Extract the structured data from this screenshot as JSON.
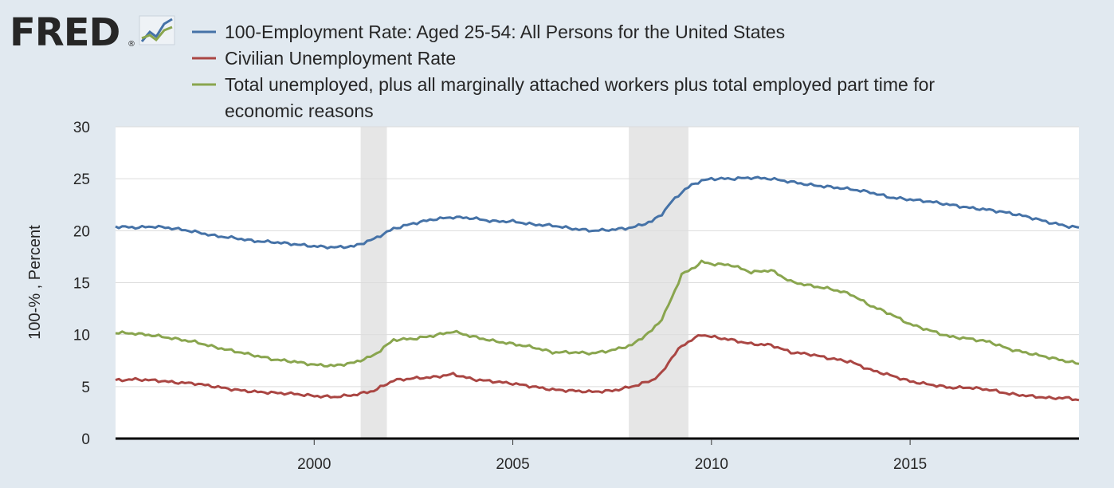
{
  "logo": {
    "text": "FRED",
    "registered": "®"
  },
  "chart_data": {
    "type": "line",
    "title": "",
    "xlabel": "",
    "ylabel": "100-% , Percent",
    "xlim": [
      1995.0,
      2019.25
    ],
    "ylim": [
      0,
      30
    ],
    "yticks": [
      0,
      5,
      10,
      15,
      20,
      25,
      30
    ],
    "ytick_labels": [
      "0",
      "5",
      "10",
      "15",
      "20",
      "25",
      "30"
    ],
    "xticks": [
      2000,
      2005,
      2010,
      2015
    ],
    "xtick_labels": [
      "2000",
      "2005",
      "2010",
      "2015"
    ],
    "grid": "horizontal",
    "legend_position": "top",
    "recessions": [
      [
        2001.17,
        2001.83
      ],
      [
        2007.92,
        2009.42
      ]
    ],
    "series": [
      {
        "name": "100-Employment Rate: Aged 25-54: All Persons for the United States",
        "color": "#4572a7",
        "points": [
          [
            1995.0,
            20.4
          ],
          [
            1995.5,
            20.3
          ],
          [
            1996.0,
            20.4
          ],
          [
            1996.5,
            20.2
          ],
          [
            1997.0,
            19.9
          ],
          [
            1997.5,
            19.5
          ],
          [
            1998.0,
            19.3
          ],
          [
            1998.5,
            19.0
          ],
          [
            1999.0,
            18.9
          ],
          [
            1999.5,
            18.7
          ],
          [
            2000.0,
            18.5
          ],
          [
            2000.5,
            18.4
          ],
          [
            2001.0,
            18.5
          ],
          [
            2001.5,
            19.2
          ],
          [
            2002.0,
            20.2
          ],
          [
            2002.5,
            20.7
          ],
          [
            2003.0,
            21.1
          ],
          [
            2003.5,
            21.3
          ],
          [
            2004.0,
            21.2
          ],
          [
            2004.5,
            20.9
          ],
          [
            2005.0,
            20.9
          ],
          [
            2005.5,
            20.6
          ],
          [
            2006.0,
            20.5
          ],
          [
            2006.5,
            20.2
          ],
          [
            2007.0,
            20.0
          ],
          [
            2007.5,
            20.1
          ],
          [
            2008.0,
            20.3
          ],
          [
            2008.5,
            20.9
          ],
          [
            2008.75,
            21.6
          ],
          [
            2009.0,
            22.8
          ],
          [
            2009.25,
            23.7
          ],
          [
            2009.5,
            24.4
          ],
          [
            2009.75,
            24.8
          ],
          [
            2010.0,
            25.0
          ],
          [
            2010.5,
            25.0
          ],
          [
            2011.0,
            25.1
          ],
          [
            2011.5,
            25.0
          ],
          [
            2012.0,
            24.7
          ],
          [
            2012.5,
            24.4
          ],
          [
            2013.0,
            24.2
          ],
          [
            2013.5,
            24.0
          ],
          [
            2014.0,
            23.7
          ],
          [
            2014.5,
            23.2
          ],
          [
            2015.0,
            23.0
          ],
          [
            2015.5,
            22.8
          ],
          [
            2016.0,
            22.5
          ],
          [
            2016.5,
            22.2
          ],
          [
            2017.0,
            22.0
          ],
          [
            2017.5,
            21.7
          ],
          [
            2018.0,
            21.3
          ],
          [
            2018.5,
            20.8
          ],
          [
            2019.0,
            20.4
          ],
          [
            2019.25,
            20.3
          ]
        ]
      },
      {
        "name": "Civilian Unemployment Rate",
        "color": "#aa4643",
        "points": [
          [
            1995.0,
            5.6
          ],
          [
            1995.5,
            5.7
          ],
          [
            1996.0,
            5.6
          ],
          [
            1996.5,
            5.4
          ],
          [
            1997.0,
            5.3
          ],
          [
            1997.5,
            5.0
          ],
          [
            1998.0,
            4.7
          ],
          [
            1998.5,
            4.5
          ],
          [
            1999.0,
            4.4
          ],
          [
            1999.5,
            4.3
          ],
          [
            2000.0,
            4.1
          ],
          [
            2000.5,
            4.0
          ],
          [
            2001.0,
            4.2
          ],
          [
            2001.5,
            4.6
          ],
          [
            2002.0,
            5.6
          ],
          [
            2002.5,
            5.8
          ],
          [
            2003.0,
            5.9
          ],
          [
            2003.5,
            6.2
          ],
          [
            2004.0,
            5.7
          ],
          [
            2004.5,
            5.5
          ],
          [
            2005.0,
            5.3
          ],
          [
            2005.5,
            5.0
          ],
          [
            2006.0,
            4.7
          ],
          [
            2006.5,
            4.6
          ],
          [
            2007.0,
            4.5
          ],
          [
            2007.5,
            4.6
          ],
          [
            2008.0,
            5.0
          ],
          [
            2008.5,
            5.6
          ],
          [
            2008.75,
            6.3
          ],
          [
            2009.0,
            7.8
          ],
          [
            2009.25,
            8.9
          ],
          [
            2009.5,
            9.5
          ],
          [
            2009.75,
            10.0
          ],
          [
            2010.0,
            9.8
          ],
          [
            2010.5,
            9.5
          ],
          [
            2011.0,
            9.1
          ],
          [
            2011.5,
            9.0
          ],
          [
            2012.0,
            8.3
          ],
          [
            2012.5,
            8.1
          ],
          [
            2013.0,
            7.7
          ],
          [
            2013.5,
            7.4
          ],
          [
            2014.0,
            6.6
          ],
          [
            2014.5,
            6.1
          ],
          [
            2015.0,
            5.5
          ],
          [
            2015.5,
            5.2
          ],
          [
            2016.0,
            4.9
          ],
          [
            2016.5,
            4.9
          ],
          [
            2017.0,
            4.7
          ],
          [
            2017.5,
            4.3
          ],
          [
            2018.0,
            4.1
          ],
          [
            2018.5,
            3.9
          ],
          [
            2019.0,
            3.9
          ],
          [
            2019.25,
            3.7
          ]
        ]
      },
      {
        "name": "Total unemployed, plus all marginally attached workers plus total employed part time for economic reasons",
        "color": "#89a54e",
        "points": [
          [
            1995.0,
            10.2
          ],
          [
            1995.5,
            10.1
          ],
          [
            1996.0,
            9.9
          ],
          [
            1996.5,
            9.6
          ],
          [
            1997.0,
            9.3
          ],
          [
            1997.5,
            8.8
          ],
          [
            1998.0,
            8.4
          ],
          [
            1998.5,
            8.0
          ],
          [
            1999.0,
            7.6
          ],
          [
            1999.5,
            7.4
          ],
          [
            2000.0,
            7.1
          ],
          [
            2000.5,
            7.0
          ],
          [
            2001.0,
            7.3
          ],
          [
            2001.5,
            8.0
          ],
          [
            2002.0,
            9.5
          ],
          [
            2002.5,
            9.6
          ],
          [
            2003.0,
            9.9
          ],
          [
            2003.5,
            10.3
          ],
          [
            2004.0,
            9.8
          ],
          [
            2004.5,
            9.4
          ],
          [
            2005.0,
            9.1
          ],
          [
            2005.5,
            8.8
          ],
          [
            2006.0,
            8.3
          ],
          [
            2006.5,
            8.3
          ],
          [
            2007.0,
            8.2
          ],
          [
            2007.5,
            8.5
          ],
          [
            2008.0,
            9.0
          ],
          [
            2008.5,
            10.4
          ],
          [
            2008.75,
            11.5
          ],
          [
            2009.0,
            13.5
          ],
          [
            2009.25,
            15.8
          ],
          [
            2009.5,
            16.3
          ],
          [
            2009.75,
            17.0
          ],
          [
            2010.0,
            16.8
          ],
          [
            2010.5,
            16.7
          ],
          [
            2011.0,
            16.0
          ],
          [
            2011.5,
            16.2
          ],
          [
            2012.0,
            15.1
          ],
          [
            2012.5,
            14.7
          ],
          [
            2013.0,
            14.4
          ],
          [
            2013.5,
            13.9
          ],
          [
            2014.0,
            12.8
          ],
          [
            2014.5,
            12.0
          ],
          [
            2015.0,
            11.0
          ],
          [
            2015.5,
            10.4
          ],
          [
            2016.0,
            9.8
          ],
          [
            2016.5,
            9.6
          ],
          [
            2017.0,
            9.3
          ],
          [
            2017.5,
            8.6
          ],
          [
            2018.0,
            8.2
          ],
          [
            2018.5,
            7.8
          ],
          [
            2019.0,
            7.4
          ],
          [
            2019.25,
            7.2
          ]
        ]
      }
    ]
  }
}
